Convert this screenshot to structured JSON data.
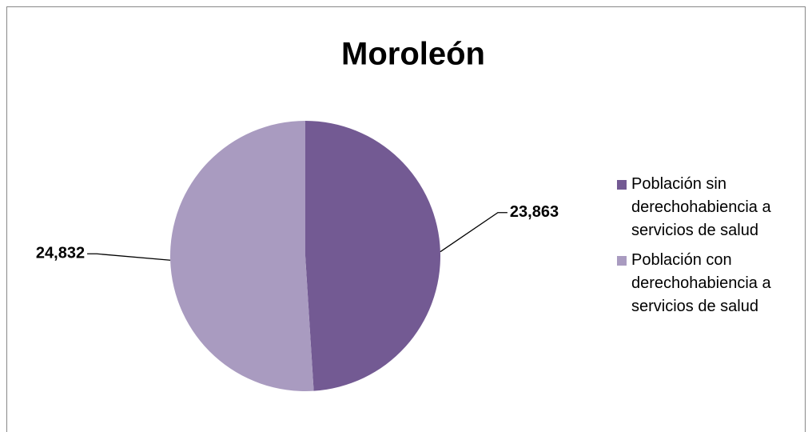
{
  "chart_data": {
    "type": "pie",
    "title": "Moroleón",
    "categories": [
      "Población sin derechohabiencia a servicios de salud",
      "Población con derechohabiencia a servicios de salud"
    ],
    "values": [
      23863,
      24832
    ],
    "value_labels": [
      "23,863",
      "24,832"
    ],
    "colors": [
      "#735a93",
      "#a99bc0"
    ],
    "legend": "right"
  }
}
